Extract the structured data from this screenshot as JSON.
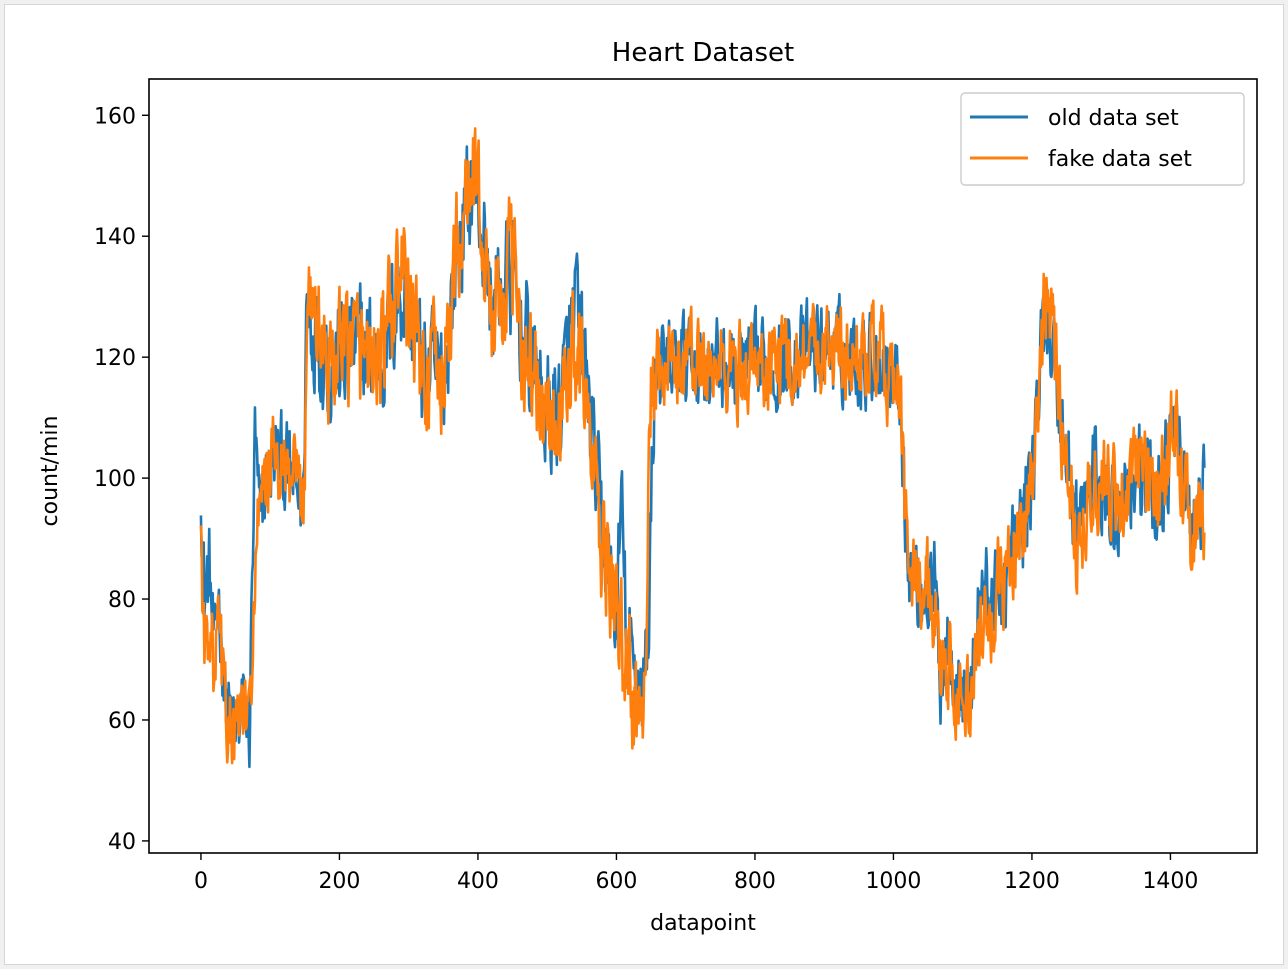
{
  "chart_data": {
    "type": "line",
    "title": "Heart Dataset",
    "xlabel": "datapoint",
    "ylabel": "count/min",
    "xlim": [
      -75,
      1525
    ],
    "ylim": [
      38,
      166
    ],
    "xticks": [
      0,
      200,
      400,
      600,
      800,
      1000,
      1200,
      1400
    ],
    "yticks": [
      40,
      60,
      80,
      100,
      120,
      140,
      160
    ],
    "xtick_labels": [
      "0",
      "200",
      "400",
      "600",
      "800",
      "1000",
      "1200",
      "1400"
    ],
    "ytick_labels": [
      "40",
      "60",
      "80",
      "100",
      "120",
      "140",
      "160"
    ],
    "grid": false,
    "legend_position": "top-right",
    "n_points": 1450,
    "series": [
      {
        "name": "old data set",
        "color": "#1f77b4",
        "anchors": [
          [
            0,
            100
          ],
          [
            5,
            80
          ],
          [
            12,
            85
          ],
          [
            20,
            70
          ],
          [
            25,
            82
          ],
          [
            35,
            64
          ],
          [
            50,
            57
          ],
          [
            60,
            62
          ],
          [
            70,
            58
          ],
          [
            78,
            106
          ],
          [
            85,
            92
          ],
          [
            95,
            100
          ],
          [
            110,
            104
          ],
          [
            130,
            100
          ],
          [
            148,
            96
          ],
          [
            152,
            128
          ],
          [
            165,
            125
          ],
          [
            190,
            118
          ],
          [
            220,
            122
          ],
          [
            260,
            120
          ],
          [
            290,
            132
          ],
          [
            320,
            118
          ],
          [
            350,
            116
          ],
          [
            370,
            138
          ],
          [
            395,
            150
          ],
          [
            420,
            128
          ],
          [
            445,
            134
          ],
          [
            470,
            122
          ],
          [
            500,
            110
          ],
          [
            520,
            112
          ],
          [
            540,
            128
          ],
          [
            555,
            118
          ],
          [
            575,
            95
          ],
          [
            600,
            76
          ],
          [
            607,
            96
          ],
          [
            615,
            72
          ],
          [
            625,
            68
          ],
          [
            635,
            66
          ],
          [
            645,
            70
          ],
          [
            655,
            118
          ],
          [
            680,
            118
          ],
          [
            700,
            120
          ],
          [
            750,
            118
          ],
          [
            800,
            118
          ],
          [
            850,
            120
          ],
          [
            900,
            122
          ],
          [
            940,
            120
          ],
          [
            980,
            120
          ],
          [
            1010,
            116
          ],
          [
            1020,
            86
          ],
          [
            1040,
            82
          ],
          [
            1060,
            82
          ],
          [
            1068,
            67
          ],
          [
            1080,
            75
          ],
          [
            1095,
            65
          ],
          [
            1110,
            62
          ],
          [
            1125,
            82
          ],
          [
            1150,
            80
          ],
          [
            1180,
            90
          ],
          [
            1200,
            100
          ],
          [
            1220,
            130
          ],
          [
            1240,
            112
          ],
          [
            1265,
            92
          ],
          [
            1290,
            100
          ],
          [
            1320,
            95
          ],
          [
            1350,
            102
          ],
          [
            1380,
            96
          ],
          [
            1410,
            108
          ],
          [
            1430,
            90
          ],
          [
            1450,
            98
          ]
        ]
      },
      {
        "name": "fake data set",
        "color": "#ff7f0e",
        "anchors": [
          [
            0,
            92
          ],
          [
            5,
            70
          ],
          [
            12,
            78
          ],
          [
            20,
            66
          ],
          [
            25,
            75
          ],
          [
            35,
            62
          ],
          [
            50,
            56
          ],
          [
            60,
            62
          ],
          [
            70,
            58
          ],
          [
            80,
            90
          ],
          [
            90,
            96
          ],
          [
            100,
            104
          ],
          [
            120,
            100
          ],
          [
            140,
            98
          ],
          [
            148,
            96
          ],
          [
            155,
            134
          ],
          [
            165,
            126
          ],
          [
            190,
            118
          ],
          [
            220,
            122
          ],
          [
            260,
            120
          ],
          [
            290,
            134
          ],
          [
            320,
            118
          ],
          [
            350,
            116
          ],
          [
            370,
            138
          ],
          [
            395,
            152
          ],
          [
            420,
            126
          ],
          [
            445,
            136
          ],
          [
            470,
            120
          ],
          [
            500,
            108
          ],
          [
            520,
            110
          ],
          [
            540,
            124
          ],
          [
            555,
            114
          ],
          [
            575,
            90
          ],
          [
            600,
            78
          ],
          [
            610,
            70
          ],
          [
            620,
            68
          ],
          [
            630,
            58
          ],
          [
            640,
            68
          ],
          [
            650,
            112
          ],
          [
            680,
            118
          ],
          [
            700,
            120
          ],
          [
            750,
            118
          ],
          [
            800,
            118
          ],
          [
            850,
            120
          ],
          [
            900,
            122
          ],
          [
            940,
            120
          ],
          [
            980,
            120
          ],
          [
            1010,
            112
          ],
          [
            1020,
            86
          ],
          [
            1040,
            82
          ],
          [
            1060,
            80
          ],
          [
            1068,
            70
          ],
          [
            1080,
            70
          ],
          [
            1095,
            64
          ],
          [
            1110,
            62
          ],
          [
            1125,
            72
          ],
          [
            1150,
            80
          ],
          [
            1180,
            90
          ],
          [
            1200,
            100
          ],
          [
            1220,
            132
          ],
          [
            1240,
            112
          ],
          [
            1265,
            90
          ],
          [
            1290,
            100
          ],
          [
            1320,
            96
          ],
          [
            1350,
            100
          ],
          [
            1380,
            96
          ],
          [
            1410,
            110
          ],
          [
            1430,
            90
          ],
          [
            1450,
            96
          ]
        ]
      }
    ]
  }
}
